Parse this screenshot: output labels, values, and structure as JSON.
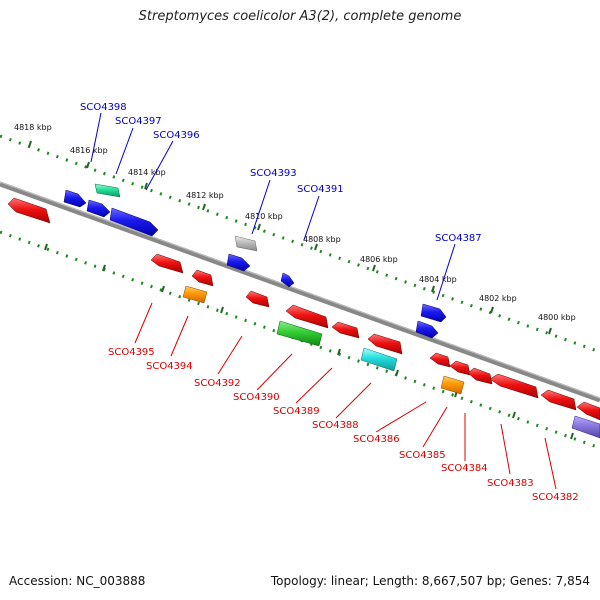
{
  "title": "Streptomyces coelicolor A3(2), complete genome",
  "footer": {
    "accession": "Accession: NC_003888",
    "summary": "Topology: linear; Length: 8,667,507 bp; Genes: 7,854"
  },
  "ticks": [
    "4818 kbp",
    "4816 kbp",
    "4814 kbp",
    "4812 kbp",
    "4810 kbp",
    "4808 kbp",
    "4806 kbp",
    "4804 kbp",
    "4802 kbp",
    "4800 kbp"
  ],
  "forward_labels": [
    "SCO4398",
    "SCO4397",
    "SCO4396",
    "SCO4393",
    "SCO4391",
    "SCO4387"
  ],
  "reverse_labels": [
    "SCO4395",
    "SCO4394",
    "SCO4392",
    "SCO4390",
    "SCO4389",
    "SCO4388",
    "SCO4386",
    "SCO4385",
    "SCO4384",
    "SCO4383",
    "SCO4382"
  ],
  "colors": {
    "backbone": "#808080",
    "dots": "#228822",
    "blue": "#1a1aee",
    "red": "#ee1111",
    "orange": "#ff9900",
    "green": "#33cc33",
    "cyan": "#22dddd",
    "teal": "#22dd99",
    "gray": "#bbbbbb",
    "purple": "#8877dd"
  }
}
